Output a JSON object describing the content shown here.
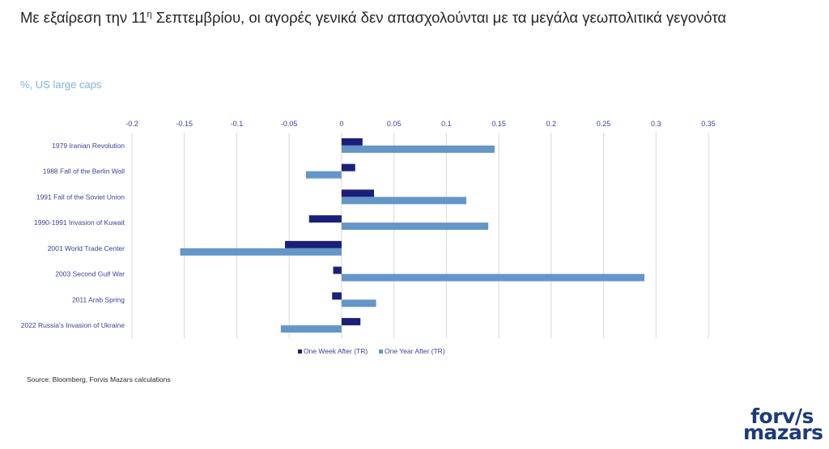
{
  "title_main": "Με εξαίρεση την 11",
  "title_sup": "η",
  "title_rest": " Σεπτεμβρίου, οι αγορές γενικά δεν απασχολούνται με τα μεγάλα γεωπολιτικά γεγονότα",
  "unit_label": "%, US large caps",
  "source": "Source: Bloomberg, Forvis Mazars calculations",
  "logo": {
    "line1": "forv/s",
    "line2": "mazars"
  },
  "colors": {
    "week": "#1a1f7a",
    "year": "#6496c8",
    "text": "#3a3f9a",
    "grid": "#d9d9d9"
  },
  "chart_data": {
    "type": "bar",
    "orientation": "horizontal",
    "categories": [
      "1979 Iranian Revolution",
      "1988 Fall of the Berlin Wall",
      "1991 Fall of the Soviet Union",
      "1990-1991 Invasion of Kuwait",
      "2001 World Trade Center",
      "2003 Second Gulf War",
      "2011 Arab Spring",
      "2022 Russia's Invasion of Ukraine"
    ],
    "series": [
      {
        "name": "One Week After (TR)",
        "values": [
          0.02,
          0.013,
          0.031,
          -0.031,
          -0.054,
          -0.008,
          -0.009,
          0.018
        ]
      },
      {
        "name": "One Year After (TR)",
        "values": [
          0.146,
          -0.034,
          0.119,
          0.14,
          -0.154,
          0.289,
          0.033,
          -0.058
        ]
      }
    ],
    "xlim": [
      -0.2,
      0.35
    ],
    "xticks": [
      "-0.2",
      "-0.15",
      "-0.1",
      "-0.05",
      "0",
      "0.05",
      "0.1",
      "0.15",
      "0.2",
      "0.25",
      "0.3",
      "0.35"
    ],
    "grid": true,
    "legend": "bottom"
  }
}
